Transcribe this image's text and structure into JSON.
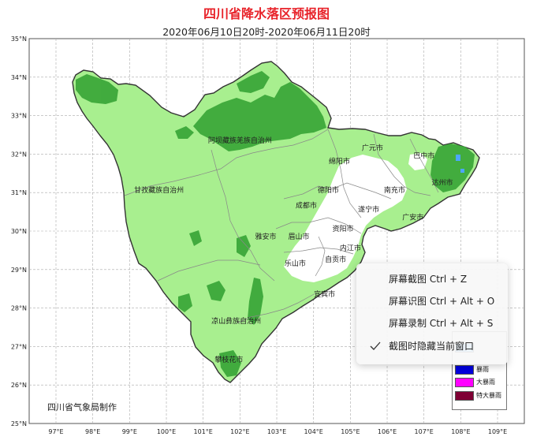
{
  "title": "四川省降水落区预报图",
  "subtitle": "2020年06月10日20时-2020年06月11日20时",
  "axes": {
    "lat_labels": [
      "35°N",
      "34°N",
      "33°N",
      "32°N",
      "31°N",
      "30°N",
      "29°N",
      "28°N",
      "27°N",
      "26°N",
      "25°N"
    ],
    "lon_labels": [
      "97°E",
      "98°E",
      "99°E",
      "100°E",
      "101°E",
      "102°E",
      "103°E",
      "104°E",
      "105°E",
      "106°E",
      "107°E",
      "108°E",
      "109°E"
    ]
  },
  "region_labels": [
    {
      "name": "阿坝藏族羌族自治州",
      "lon": 102.0,
      "lat": 32.3
    },
    {
      "name": "甘孜藏族自治州",
      "lon": 99.8,
      "lat": 31.0
    },
    {
      "name": "凉山彝族自治州",
      "lon": 101.9,
      "lat": 27.6
    },
    {
      "name": "广元市",
      "lon": 105.6,
      "lat": 32.1
    },
    {
      "name": "绵阳市",
      "lon": 104.7,
      "lat": 31.75
    },
    {
      "name": "巴中市",
      "lon": 107.0,
      "lat": 31.9
    },
    {
      "name": "达州市",
      "lon": 107.5,
      "lat": 31.2
    },
    {
      "name": "德阳市",
      "lon": 104.4,
      "lat": 31.0
    },
    {
      "name": "南充市",
      "lon": 106.2,
      "lat": 31.0
    },
    {
      "name": "成都市",
      "lon": 103.8,
      "lat": 30.6
    },
    {
      "name": "遂宁市",
      "lon": 105.5,
      "lat": 30.5
    },
    {
      "name": "广安市",
      "lon": 106.7,
      "lat": 30.3
    },
    {
      "name": "资阳市",
      "lon": 104.8,
      "lat": 30.0
    },
    {
      "name": "雅安市",
      "lon": 102.7,
      "lat": 29.8
    },
    {
      "name": "眉山市",
      "lon": 103.6,
      "lat": 29.8
    },
    {
      "name": "内江市",
      "lon": 105.0,
      "lat": 29.5
    },
    {
      "name": "乐山市",
      "lon": 103.5,
      "lat": 29.1
    },
    {
      "name": "自贡市",
      "lon": 104.6,
      "lat": 29.2
    },
    {
      "name": "宜宾市",
      "lon": 104.3,
      "lat": 28.3
    },
    {
      "name": "攀枝花市",
      "lon": 101.7,
      "lat": 26.6
    }
  ],
  "credit": "四川省气象局制作",
  "legend": [
    {
      "label": "",
      "color": "#4da6ff"
    },
    {
      "label": "暴雨",
      "color": "#0000dd"
    },
    {
      "label": "大暴雨",
      "color": "#ff00ff"
    },
    {
      "label": "特大暴雨",
      "color": "#7f0034"
    }
  ],
  "context_menu": [
    {
      "label": "屏幕截图 Ctrl + Z",
      "checked": false
    },
    {
      "label": "屏幕识图 Ctrl + Alt + O",
      "checked": false
    },
    {
      "label": "屏幕录制 Ctrl + Alt + S",
      "checked": false
    },
    {
      "label": "截图时隐藏当前窗口",
      "checked": true
    }
  ],
  "colors": {
    "light_rain": "#a8ef8f",
    "moderate_rain": "#3ca83a",
    "heavy_rain_spot": "#4da6ff",
    "no_rain": "#ffffff",
    "boundary": "#333333",
    "title": "#e8232a"
  }
}
